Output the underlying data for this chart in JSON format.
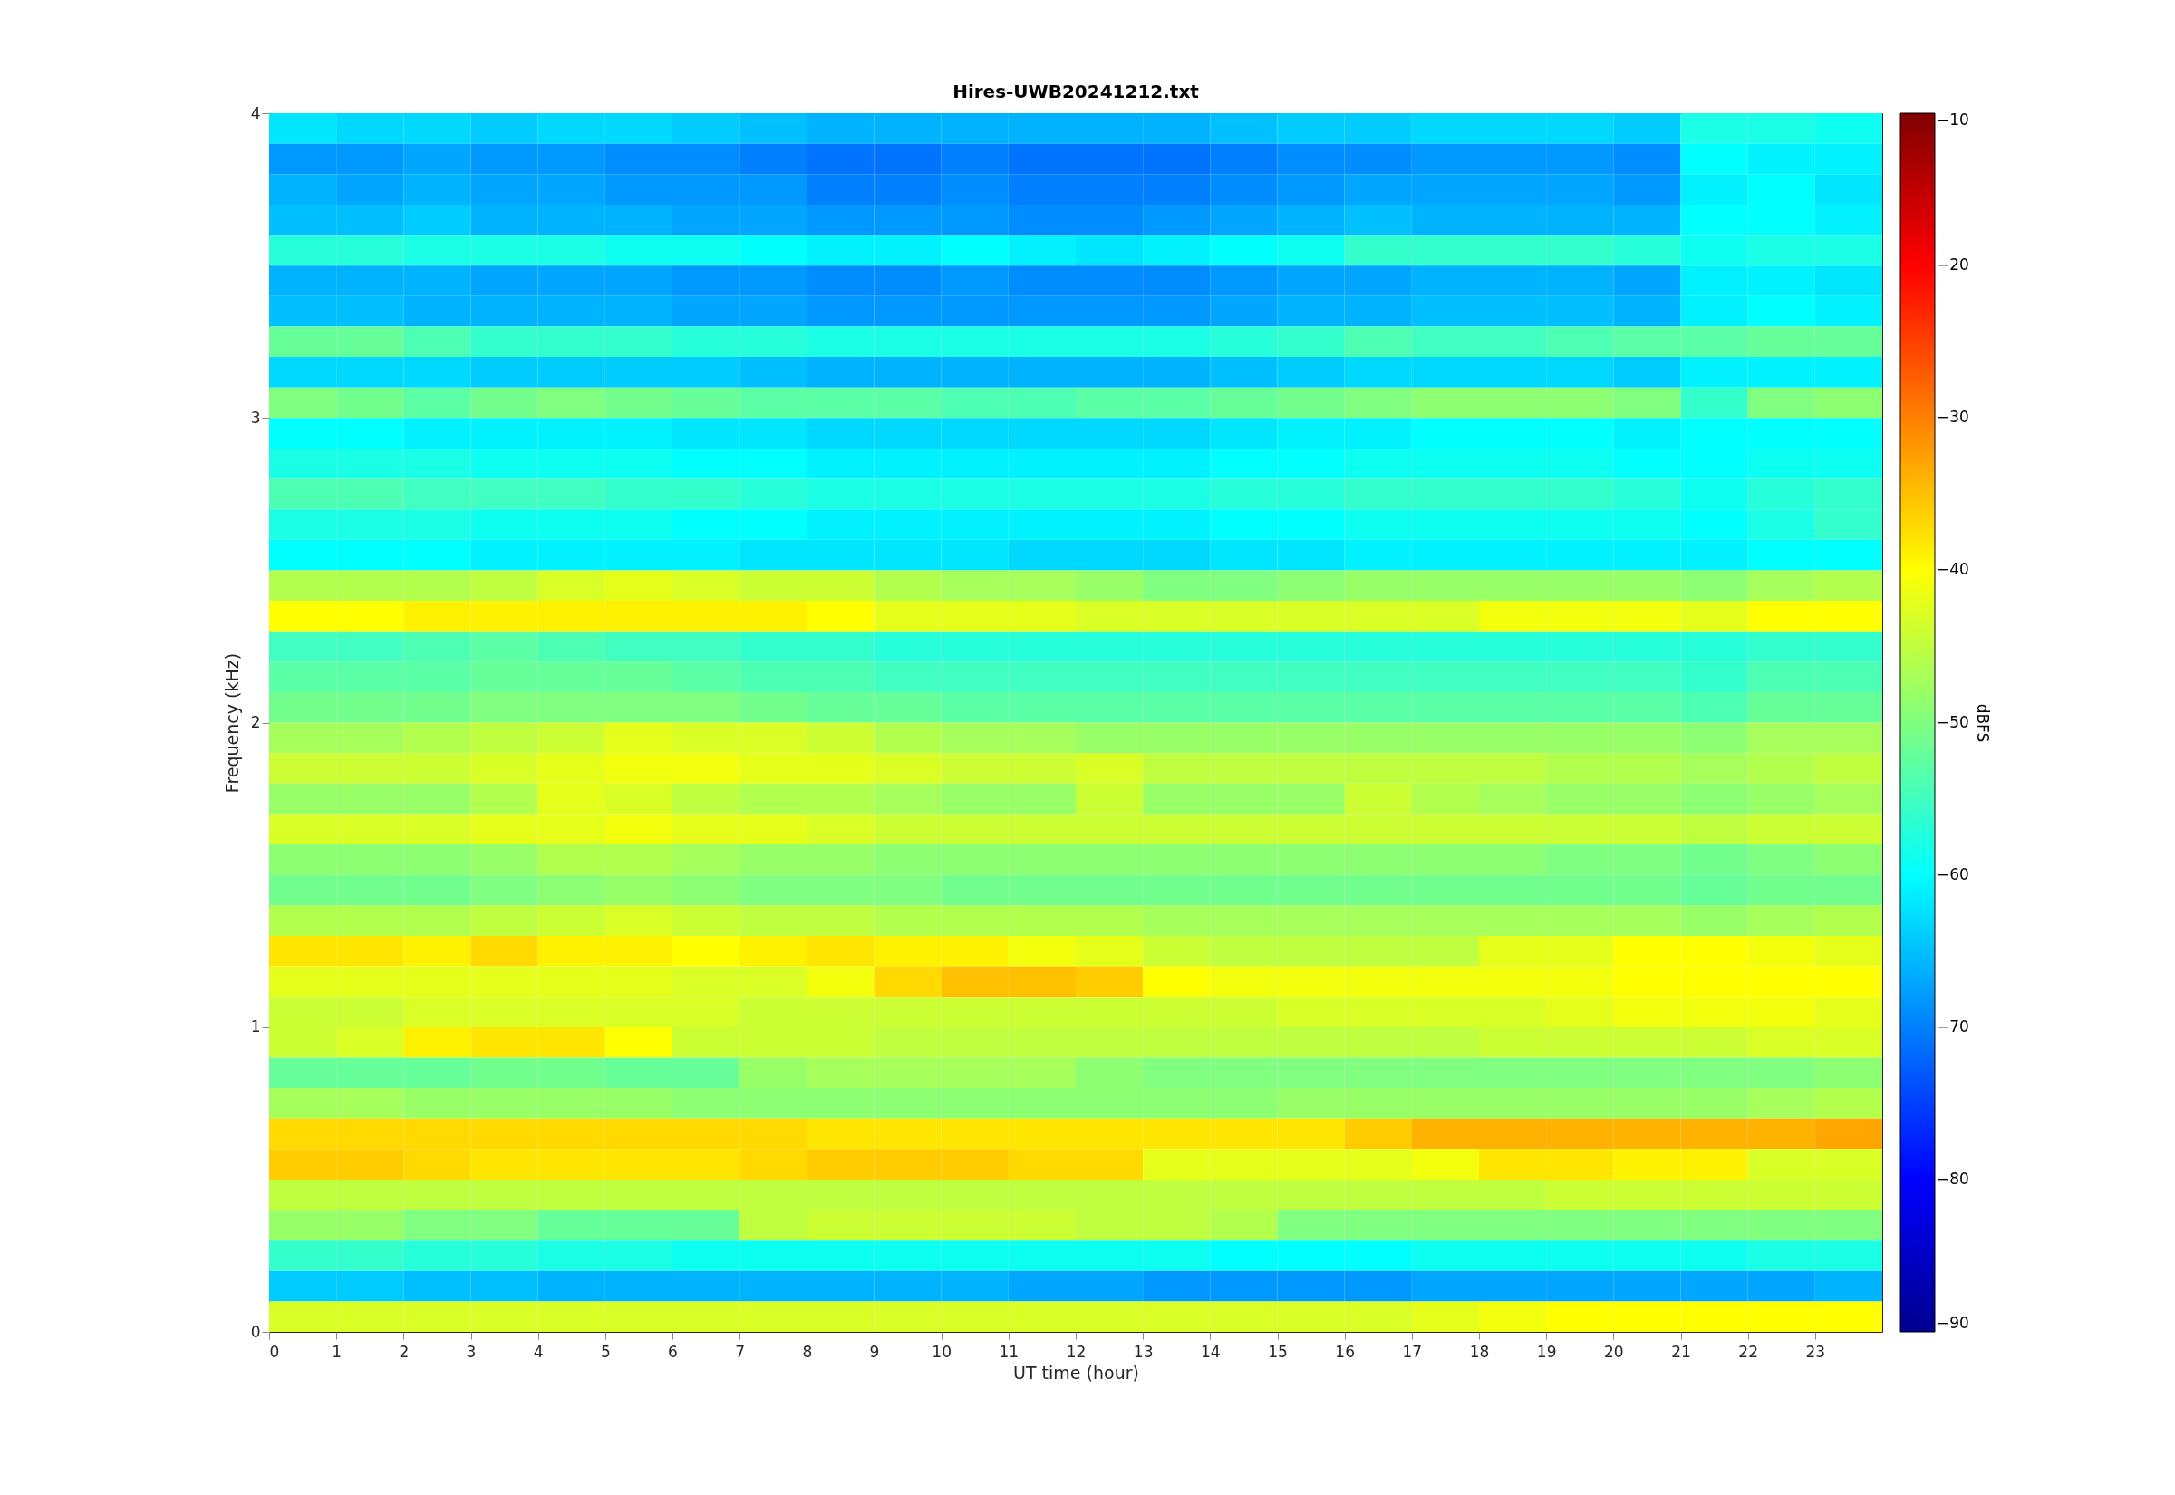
{
  "chart_data": {
    "type": "heatmap",
    "title": "Hires-UWB20241212.txt",
    "xlabel": "UT time (hour)",
    "ylabel": "Frequency (kHz)",
    "clabel": "dBFS",
    "x": [
      0.5,
      1.5,
      2.5,
      3.5,
      4.5,
      5.5,
      6.5,
      7.5,
      8.5,
      9.5,
      10.5,
      11.5,
      12.5,
      13.5,
      14.5,
      15.5,
      16.5,
      17.5,
      18.5,
      19.5,
      20.5,
      21.5,
      22.5,
      23.5
    ],
    "y": [
      3.95,
      3.85,
      3.75,
      3.65,
      3.55,
      3.45,
      3.35,
      3.25,
      3.15,
      3.05,
      2.95,
      2.85,
      2.75,
      2.65,
      2.55,
      2.45,
      2.35,
      2.25,
      2.15,
      2.05,
      1.95,
      1.85,
      1.75,
      1.65,
      1.55,
      1.45,
      1.35,
      1.25,
      1.15,
      1.05,
      0.95,
      0.85,
      0.75,
      0.65,
      0.55,
      0.45,
      0.35,
      0.25,
      0.15,
      0.05
    ],
    "xlim": [
      0,
      24
    ],
    "xticks": [
      0,
      1,
      2,
      3,
      4,
      5,
      6,
      7,
      8,
      9,
      10,
      11,
      12,
      13,
      14,
      15,
      16,
      17,
      18,
      19,
      20,
      21,
      22,
      23
    ],
    "ylim": [
      0,
      4
    ],
    "yticks": [
      0,
      1,
      2,
      3,
      4
    ],
    "clim": [
      -90,
      -10
    ],
    "cticks": [
      -90,
      -80,
      -70,
      -60,
      -50,
      -40,
      -30,
      -20,
      -10
    ],
    "cells": [
      [
        -62,
        -63,
        -63,
        -64,
        -63,
        -63,
        -64,
        -65,
        -66,
        -66,
        -66,
        -66,
        -66,
        -66,
        -65,
        -64,
        -64,
        -63,
        -63,
        -63,
        -64,
        -58,
        -58,
        -59
      ],
      [
        -68,
        -68,
        -67,
        -68,
        -68,
        -69,
        -69,
        -70,
        -71,
        -71,
        -70,
        -71,
        -71,
        -71,
        -70,
        -69,
        -69,
        -68,
        -68,
        -68,
        -69,
        -60,
        -61,
        -61
      ],
      [
        -66,
        -67,
        -66,
        -67,
        -67,
        -68,
        -68,
        -68,
        -70,
        -70,
        -69,
        -70,
        -70,
        -70,
        -69,
        -68,
        -67,
        -67,
        -67,
        -67,
        -68,
        -61,
        -60,
        -62
      ],
      [
        -65,
        -65,
        -64,
        -66,
        -66,
        -66,
        -67,
        -67,
        -68,
        -68,
        -68,
        -69,
        -69,
        -68,
        -67,
        -66,
        -65,
        -66,
        -66,
        -66,
        -66,
        -60,
        -60,
        -61
      ],
      [
        -57,
        -57,
        -58,
        -58,
        -58,
        -59,
        -59,
        -60,
        -61,
        -61,
        -60,
        -61,
        -62,
        -61,
        -60,
        -59,
        -56,
        -56,
        -56,
        -56,
        -57,
        -59,
        -58,
        -58
      ],
      [
        -66,
        -66,
        -66,
        -67,
        -67,
        -67,
        -68,
        -68,
        -69,
        -69,
        -68,
        -69,
        -69,
        -69,
        -68,
        -67,
        -67,
        -66,
        -66,
        -66,
        -67,
        -61,
        -61,
        -62
      ],
      [
        -65,
        -65,
        -66,
        -66,
        -66,
        -66,
        -67,
        -67,
        -68,
        -68,
        -68,
        -68,
        -68,
        -68,
        -67,
        -66,
        -66,
        -65,
        -65,
        -65,
        -66,
        -61,
        -60,
        -61
      ],
      [
        -52,
        -52,
        -54,
        -56,
        -56,
        -56,
        -57,
        -57,
        -58,
        -58,
        -58,
        -58,
        -58,
        -58,
        -57,
        -56,
        -54,
        -55,
        -55,
        -54,
        -53,
        -53,
        -52,
        -52
      ],
      [
        -63,
        -63,
        -63,
        -64,
        -64,
        -64,
        -64,
        -65,
        -66,
        -66,
        -66,
        -66,
        -66,
        -66,
        -65,
        -64,
        -63,
        -63,
        -63,
        -63,
        -64,
        -61,
        -61,
        -61
      ],
      [
        -50,
        -51,
        -53,
        -51,
        -50,
        -51,
        -52,
        -53,
        -53,
        -53,
        -54,
        -54,
        -53,
        -53,
        -52,
        -51,
        -50,
        -49,
        -49,
        -49,
        -50,
        -56,
        -50,
        -49
      ],
      [
        -60,
        -60,
        -61,
        -61,
        -61,
        -61,
        -62,
        -62,
        -63,
        -63,
        -63,
        -63,
        -63,
        -63,
        -62,
        -61,
        -61,
        -60,
        -60,
        -60,
        -61,
        -60,
        -60,
        -60
      ],
      [
        -58,
        -58,
        -58,
        -59,
        -59,
        -59,
        -60,
        -60,
        -61,
        -61,
        -61,
        -61,
        -61,
        -61,
        -60,
        -60,
        -59,
        -59,
        -59,
        -59,
        -60,
        -60,
        -59,
        -59
      ],
      [
        -54,
        -54,
        -55,
        -55,
        -55,
        -56,
        -56,
        -57,
        -58,
        -58,
        -58,
        -58,
        -58,
        -58,
        -57,
        -57,
        -56,
        -56,
        -56,
        -56,
        -57,
        -59,
        -57,
        -56
      ],
      [
        -58,
        -58,
        -58,
        -59,
        -59,
        -59,
        -60,
        -60,
        -61,
        -61,
        -61,
        -61,
        -61,
        -61,
        -60,
        -60,
        -59,
        -59,
        -59,
        -59,
        -59,
        -60,
        -58,
        -56
      ],
      [
        -60,
        -60,
        -60,
        -61,
        -61,
        -61,
        -61,
        -62,
        -62,
        -62,
        -62,
        -63,
        -63,
        -63,
        -62,
        -62,
        -61,
        -61,
        -61,
        -61,
        -61,
        -61,
        -60,
        -60
      ],
      [
        -46,
        -46,
        -46,
        -45,
        -43,
        -42,
        -43,
        -44,
        -44,
        -46,
        -47,
        -47,
        -48,
        -50,
        -50,
        -49,
        -48,
        -48,
        -48,
        -48,
        -48,
        -49,
        -47,
        -46
      ],
      [
        -40,
        -40,
        -39,
        -39,
        -39,
        -39,
        -39,
        -39,
        -40,
        -42,
        -42,
        -42,
        -43,
        -43,
        -43,
        -43,
        -43,
        -43,
        -41,
        -41,
        -41,
        -42,
        -40,
        -40
      ],
      [
        -55,
        -55,
        -54,
        -53,
        -54,
        -55,
        -55,
        -56,
        -56,
        -57,
        -57,
        -57,
        -57,
        -57,
        -57,
        -57,
        -57,
        -57,
        -57,
        -57,
        -57,
        -57,
        -56,
        -56
      ],
      [
        -53,
        -53,
        -53,
        -52,
        -52,
        -52,
        -53,
        -54,
        -54,
        -55,
        -55,
        -55,
        -55,
        -55,
        -55,
        -55,
        -55,
        -55,
        -55,
        -55,
        -55,
        -56,
        -54,
        -54
      ],
      [
        -51,
        -51,
        -51,
        -50,
        -50,
        -50,
        -50,
        -51,
        -52,
        -52,
        -53,
        -53,
        -53,
        -53,
        -53,
        -53,
        -53,
        -53,
        -53,
        -53,
        -53,
        -54,
        -52,
        -52
      ],
      [
        -47,
        -47,
        -46,
        -45,
        -44,
        -42,
        -43,
        -43,
        -44,
        -46,
        -47,
        -47,
        -48,
        -48,
        -48,
        -48,
        -48,
        -48,
        -48,
        -48,
        -48,
        -49,
        -47,
        -47
      ],
      [
        -44,
        -44,
        -44,
        -43,
        -42,
        -41,
        -41,
        -42,
        -42,
        -43,
        -44,
        -44,
        -43,
        -45,
        -45,
        -45,
        -45,
        -45,
        -45,
        -46,
        -46,
        -47,
        -46,
        -45
      ],
      [
        -48,
        -48,
        -48,
        -46,
        -42,
        -43,
        -45,
        -46,
        -46,
        -47,
        -48,
        -48,
        -44,
        -48,
        -48,
        -48,
        -44,
        -46,
        -47,
        -48,
        -48,
        -49,
        -48,
        -47
      ],
      [
        -43,
        -43,
        -43,
        -42,
        -42,
        -41,
        -42,
        -42,
        -43,
        -44,
        -44,
        -44,
        -44,
        -44,
        -44,
        -44,
        -44,
        -44,
        -44,
        -44,
        -44,
        -45,
        -44,
        -44
      ],
      [
        -49,
        -49,
        -49,
        -48,
        -46,
        -46,
        -47,
        -48,
        -48,
        -49,
        -49,
        -49,
        -49,
        -49,
        -49,
        -49,
        -49,
        -49,
        -49,
        -50,
        -50,
        -51,
        -50,
        -49
      ],
      [
        -51,
        -51,
        -51,
        -50,
        -49,
        -48,
        -49,
        -50,
        -50,
        -50,
        -51,
        -51,
        -51,
        -51,
        -51,
        -51,
        -51,
        -51,
        -51,
        -51,
        -51,
        -52,
        -51,
        -51
      ],
      [
        -46,
        -46,
        -46,
        -45,
        -44,
        -43,
        -44,
        -45,
        -45,
        -46,
        -46,
        -46,
        -46,
        -47,
        -47,
        -47,
        -47,
        -47,
        -47,
        -47,
        -47,
        -48,
        -47,
        -46
      ],
      [
        -38,
        -38,
        -39,
        -37,
        -39,
        -39,
        -40,
        -39,
        -38,
        -39,
        -39,
        -41,
        -42,
        -44,
        -45,
        -45,
        -45,
        -45,
        -42,
        -42,
        -40,
        -40,
        -41,
        -42
      ],
      [
        -42,
        -42,
        -42,
        -42,
        -42,
        -42,
        -43,
        -43,
        -41,
        -37,
        -35,
        -35,
        -36,
        -40,
        -41,
        -41,
        -41,
        -41,
        -41,
        -41,
        -40,
        -40,
        -40,
        -40
      ],
      [
        -44,
        -44,
        -43,
        -43,
        -43,
        -43,
        -43,
        -44,
        -44,
        -44,
        -44,
        -44,
        -44,
        -44,
        -44,
        -43,
        -43,
        -43,
        -43,
        -42,
        -41,
        -41,
        -41,
        -42
      ],
      [
        -44,
        -43,
        -39,
        -38,
        -38,
        -40,
        -44,
        -44,
        -44,
        -45,
        -45,
        -45,
        -45,
        -45,
        -45,
        -45,
        -45,
        -45,
        -44,
        -44,
        -44,
        -44,
        -43,
        -43
      ],
      [
        -52,
        -52,
        -52,
        -51,
        -51,
        -52,
        -52,
        -48,
        -47,
        -47,
        -47,
        -47,
        -49,
        -50,
        -50,
        -50,
        -50,
        -50,
        -50,
        -50,
        -50,
        -50,
        -50,
        -49
      ],
      [
        -47,
        -47,
        -48,
        -48,
        -48,
        -48,
        -49,
        -49,
        -49,
        -49,
        -49,
        -49,
        -49,
        -49,
        -49,
        -48,
        -48,
        -48,
        -48,
        -48,
        -48,
        -48,
        -47,
        -46
      ],
      [
        -37,
        -37,
        -37,
        -37,
        -37,
        -37,
        -37,
        -37,
        -38,
        -38,
        -38,
        -38,
        -38,
        -38,
        -38,
        -38,
        -36,
        -34,
        -34,
        -34,
        -34,
        -34,
        -34,
        -33
      ],
      [
        -36,
        -36,
        -37,
        -38,
        -38,
        -38,
        -38,
        -37,
        -36,
        -36,
        -36,
        -37,
        -37,
        -42,
        -42,
        -42,
        -42,
        -41,
        -38,
        -38,
        -39,
        -39,
        -43,
        -43
      ],
      [
        -45,
        -45,
        -45,
        -45,
        -45,
        -45,
        -45,
        -45,
        -45,
        -45,
        -45,
        -45,
        -45,
        -45,
        -45,
        -45,
        -45,
        -45,
        -45,
        -44,
        -44,
        -44,
        -44,
        -44
      ],
      [
        -48,
        -48,
        -50,
        -50,
        -52,
        -52,
        -52,
        -45,
        -44,
        -44,
        -44,
        -44,
        -45,
        -45,
        -46,
        -50,
        -50,
        -50,
        -50,
        -50,
        -50,
        -50,
        -50,
        -50
      ],
      [
        -56,
        -56,
        -57,
        -57,
        -58,
        -58,
        -59,
        -59,
        -59,
        -59,
        -59,
        -59,
        -59,
        -59,
        -60,
        -60,
        -60,
        -59,
        -59,
        -59,
        -59,
        -59,
        -58,
        -58
      ],
      [
        -64,
        -64,
        -65,
        -65,
        -66,
        -66,
        -66,
        -66,
        -66,
        -66,
        -66,
        -67,
        -67,
        -68,
        -68,
        -68,
        -68,
        -67,
        -67,
        -67,
        -67,
        -67,
        -67,
        -66
      ],
      [
        -43,
        -43,
        -43,
        -43,
        -43,
        -43,
        -43,
        -43,
        -43,
        -43,
        -43,
        -43,
        -43,
        -43,
        -43,
        -43,
        -43,
        -42,
        -41,
        -40,
        -40,
        -40,
        -40,
        -40
      ]
    ]
  }
}
